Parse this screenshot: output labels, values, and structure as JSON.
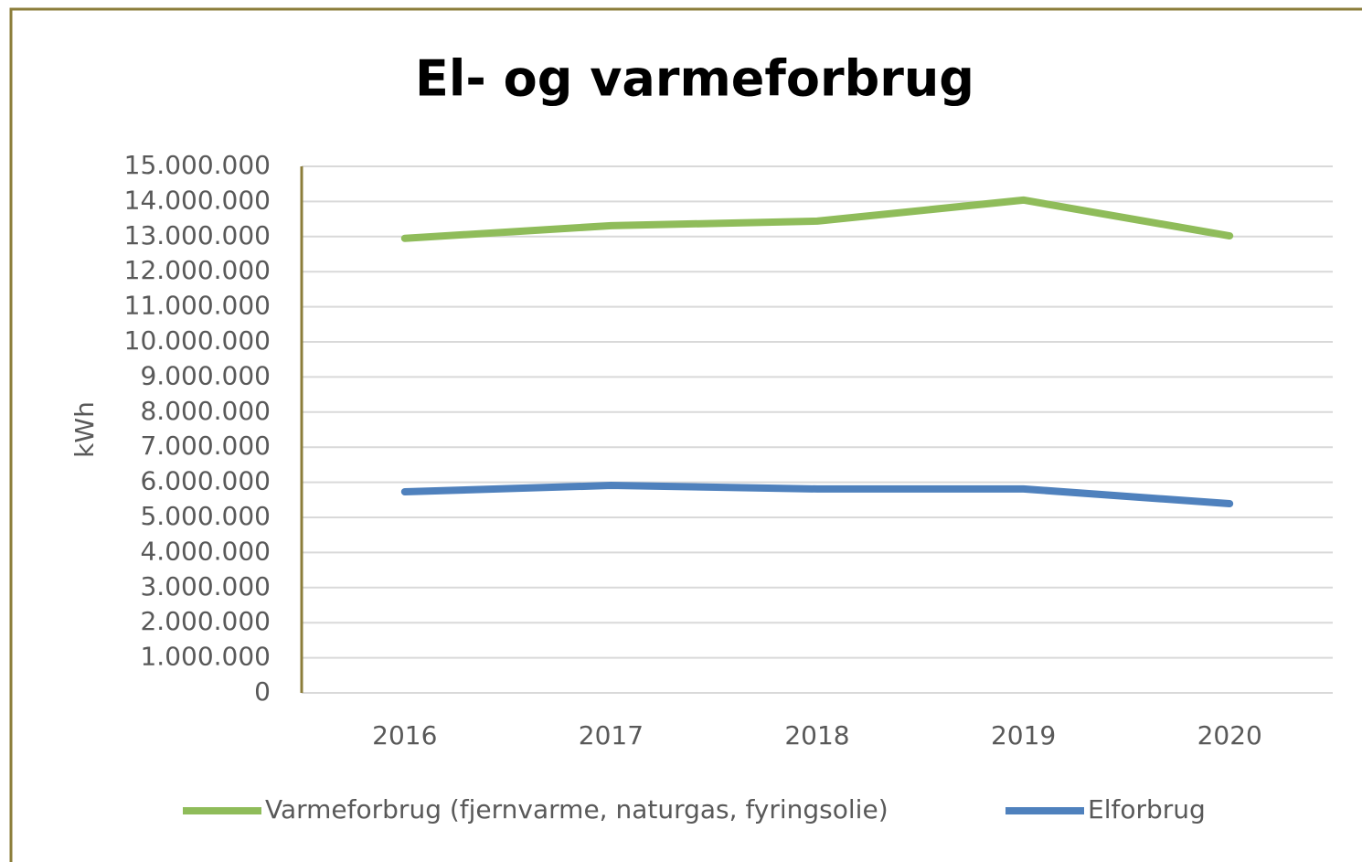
{
  "chart_data": {
    "type": "line",
    "title": "El- og varmeforbrug",
    "y_label": "kWh",
    "categories": [
      "2016",
      "2017",
      "2018",
      "2019",
      "2020"
    ],
    "series": [
      {
        "name": "Varmeforbrug (fjernvarme, naturgas, fyringsolie)",
        "color": "#8fbc5a",
        "values": [
          12950000,
          13310000,
          13440000,
          14040000,
          13020000
        ]
      },
      {
        "name": "Elforbrug",
        "color": "#4f81bd",
        "values": [
          5730000,
          5910000,
          5810000,
          5810000,
          5390000
        ]
      }
    ],
    "ylim": [
      0,
      15000000
    ],
    "yticks": [
      0,
      {
        "value": 1000000,
        "label": "1.000.000"
      },
      {
        "value": 2000000,
        "label": "2.000.000"
      },
      {
        "value": 3000000,
        "label": "3.000.000"
      },
      {
        "value": 4000000,
        "label": "4.000.000"
      },
      {
        "value": 5000000,
        "label": "5.000.000"
      },
      {
        "value": 6000000,
        "label": "6.000.000"
      },
      {
        "value": 7000000,
        "label": "7.000.000"
      },
      {
        "value": 8000000,
        "label": "8.000.000"
      },
      {
        "value": 9000000,
        "label": "9.000.000"
      },
      {
        "value": 10000000,
        "label": "10.000.000"
      },
      {
        "value": 11000000,
        "label": "11.000.000"
      },
      {
        "value": 12000000,
        "label": "12.000.000"
      },
      {
        "value": 13000000,
        "label": "13.000.000"
      },
      {
        "value": 14000000,
        "label": "14.000.000"
      },
      {
        "value": 15000000,
        "label": "15.000.000"
      }
    ],
    "grid": true,
    "legend": "bottom"
  }
}
